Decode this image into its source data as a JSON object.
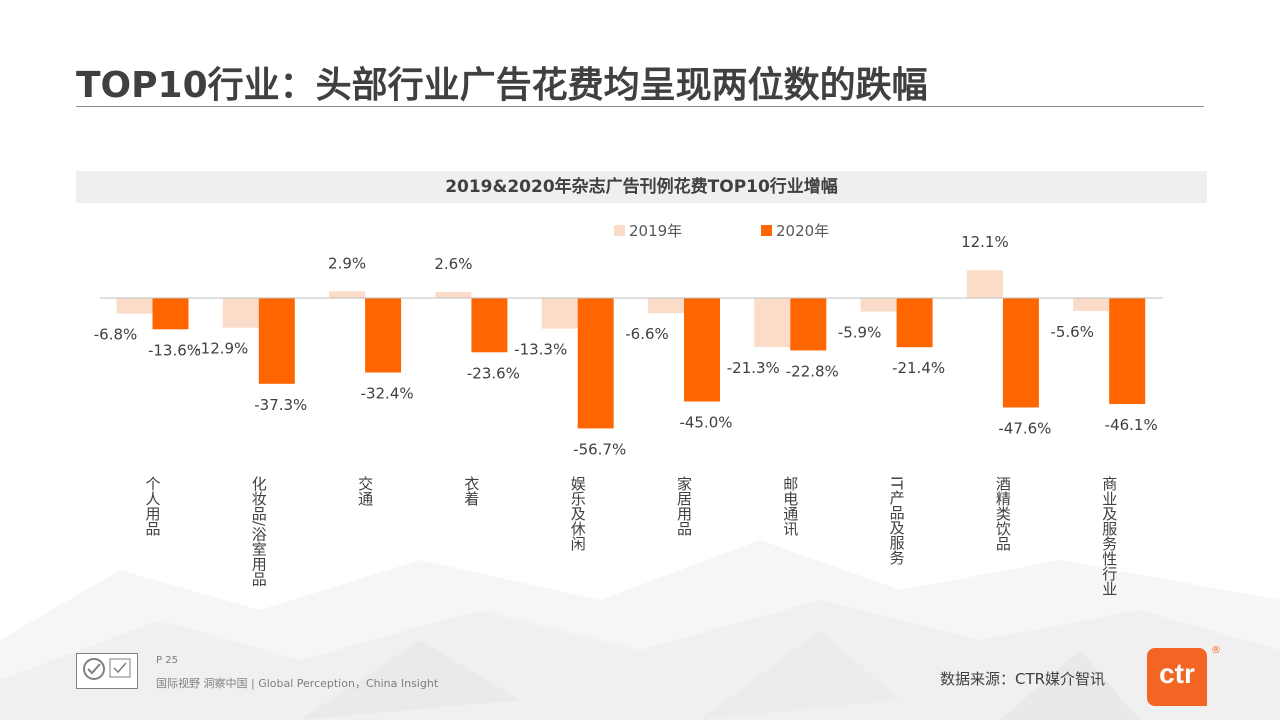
{
  "page": {
    "title": "TOP10行业：头部行业广告花费均呈现两位数的跌幅",
    "page_number": "P 25",
    "slogan": "国际视野 洞察中国 | Global Perception，China Insight",
    "source": "数据来源：CTR媒介智讯",
    "brand": "ctr",
    "brand_mark": "®"
  },
  "colors": {
    "series_2019": "#fbdcc8",
    "series_2020": "#ff6600",
    "text": "#404040",
    "banner": "#efefef"
  },
  "chart_data": {
    "type": "bar",
    "title": "2019&2020年杂志广告刊例花费TOP10行业增幅",
    "categories": [
      "个人用品",
      "化妆品/浴室用品",
      "交通",
      "衣着",
      "娱乐及休闲",
      "家居用品",
      "邮电通讯",
      "IT产品及服务",
      "酒精类饮品",
      "商业及服务性行业"
    ],
    "series": [
      {
        "name": "2019年",
        "values": [
          -6.8,
          -12.9,
          2.9,
          2.6,
          -13.3,
          -6.6,
          -21.3,
          -5.9,
          12.1,
          -5.6
        ]
      },
      {
        "name": "2020年",
        "values": [
          -13.6,
          -37.3,
          -32.4,
          -23.6,
          -56.7,
          -45.0,
          -22.8,
          -21.4,
          -47.6,
          -46.1
        ]
      }
    ],
    "value_labels": {
      "2019年": [
        "-6.8%",
        "-12.9%",
        "2.9%",
        "2.6%",
        "-13.3%",
        "-6.6%",
        "-21.3%",
        "-5.9%",
        "12.1%",
        "-5.6%"
      ],
      "2020年": [
        "-13.6%",
        "-37.3%",
        "-32.4%",
        "-23.6%",
        "-56.7%",
        "-45.0%",
        "-22.8%",
        "-21.4%",
        "-47.6%",
        "-46.1%"
      ]
    },
    "unit": "%",
    "legend_position": "top",
    "grid": false
  }
}
